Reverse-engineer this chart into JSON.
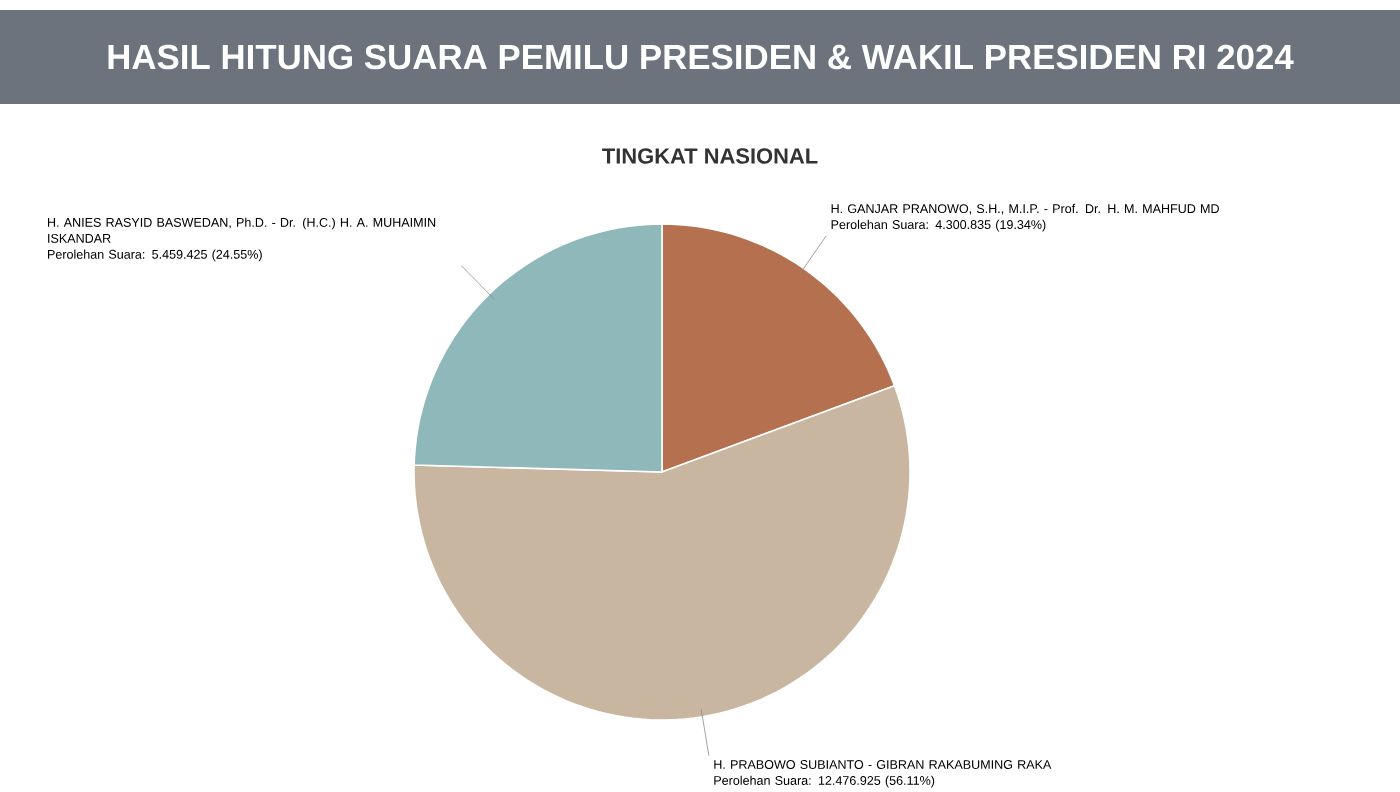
{
  "chart_data": {
    "type": "pie",
    "title": "HASIL HITUNG SUARA PEMILU PRESIDEN & WAKIL PRESIDEN RI 2024",
    "subtitle": "TINGKAT NASIONAL",
    "categories": [
      "H. GANJAR PRANOWO, S.H., M.I.P. - Prof. Dr. H. M. MAHFUD MD",
      "H. PRABOWO SUBIANTO - GIBRAN RAKABUMING RAKA",
      "H. ANIES RASYID BASWEDAN, Ph.D. - Dr. (H.C.) H. A. MUHAIMIN ISKANDAR"
    ],
    "values": [
      4300835,
      12476925,
      5459425
    ],
    "value_labels": [
      "Perolehan Suara: 4.300.835 (19.34%)",
      "Perolehan Suara: 12.476.925 (56.11%)",
      "Perolehan Suara: 5.459.425 (24.55%)"
    ],
    "colors": [
      "#b5714f",
      "#c9b6a1",
      "#8fb8bb"
    ]
  }
}
